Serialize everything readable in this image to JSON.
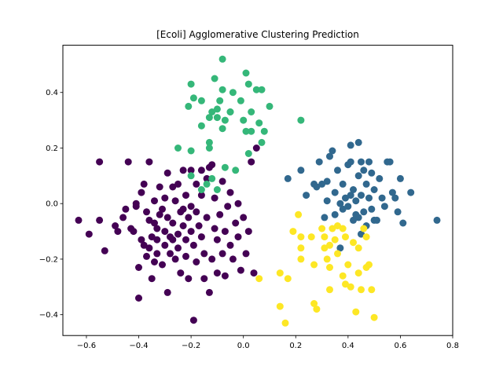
{
  "chart_data": {
    "type": "scatter",
    "title": "[Ecoli] Agglomerative Clustering Prediction",
    "xlabel": "",
    "ylabel": "",
    "xlim": [
      -0.69,
      0.8
    ],
    "ylim": [
      -0.475,
      0.57
    ],
    "xticks": [
      -0.6,
      -0.4,
      -0.2,
      0.0,
      0.2,
      0.4,
      0.6,
      0.8
    ],
    "xtick_labels": [
      "−0.6",
      "−0.4",
      "−0.2",
      "0.0",
      "0.2",
      "0.4",
      "0.6",
      "0.8"
    ],
    "yticks": [
      -0.4,
      -0.2,
      0.0,
      0.2,
      0.4
    ],
    "ytick_labels": [
      "−0.4",
      "−0.2",
      "0.0",
      "0.2",
      "0.4"
    ],
    "grid": false,
    "colors": [
      "#440154",
      "#31688e",
      "#35b779",
      "#fde725"
    ],
    "series": [
      {
        "color": "#440154",
        "points": [
          [
            -0.63,
            -0.06
          ],
          [
            -0.59,
            -0.11
          ],
          [
            -0.55,
            0.15
          ],
          [
            -0.55,
            -0.06
          ],
          [
            -0.53,
            -0.17
          ],
          [
            -0.49,
            -0.08
          ],
          [
            -0.48,
            -0.1
          ],
          [
            -0.46,
            -0.05
          ],
          [
            -0.45,
            -0.02
          ],
          [
            -0.44,
            0.15
          ],
          [
            -0.43,
            -0.09
          ],
          [
            -0.42,
            -0.1
          ],
          [
            -0.41,
            -0.01
          ],
          [
            -0.4,
            -0.23
          ],
          [
            -0.4,
            -0.34
          ],
          [
            -0.39,
            0.04
          ],
          [
            -0.39,
            -0.13
          ],
          [
            -0.38,
            0.07
          ],
          [
            -0.38,
            -0.15
          ],
          [
            -0.37,
            -0.03
          ],
          [
            -0.37,
            -0.19
          ],
          [
            -0.36,
            0.15
          ],
          [
            -0.36,
            -0.06
          ],
          [
            -0.35,
            -0.12
          ],
          [
            -0.35,
            -0.27
          ],
          [
            -0.34,
            0.01
          ],
          [
            -0.34,
            -0.07
          ],
          [
            -0.34,
            -0.21
          ],
          [
            -0.33,
            -0.13
          ],
          [
            -0.33,
            -0.18
          ],
          [
            -0.32,
            0.06
          ],
          [
            -0.32,
            -0.04
          ],
          [
            -0.31,
            -0.02
          ],
          [
            -0.31,
            -0.22
          ],
          [
            -0.3,
            0.02
          ],
          [
            -0.3,
            -0.1
          ],
          [
            -0.3,
            -0.15
          ],
          [
            -0.29,
            0.11
          ],
          [
            -0.29,
            -0.05
          ],
          [
            -0.29,
            -0.32
          ],
          [
            -0.28,
            -0.12
          ],
          [
            -0.28,
            -0.18
          ],
          [
            -0.27,
            0.06
          ],
          [
            -0.27,
            -0.07
          ],
          [
            -0.26,
            0.01
          ],
          [
            -0.26,
            -0.2
          ],
          [
            -0.25,
            0.07
          ],
          [
            -0.25,
            -0.11
          ],
          [
            -0.25,
            -0.16
          ],
          [
            -0.24,
            -0.03
          ],
          [
            -0.24,
            -0.25
          ],
          [
            -0.23,
            0.12
          ],
          [
            -0.23,
            -0.08
          ],
          [
            -0.22,
            0.03
          ],
          [
            -0.22,
            -0.13
          ],
          [
            -0.22,
            -0.19
          ],
          [
            -0.21,
            -0.05
          ],
          [
            -0.21,
            -0.27
          ],
          [
            -0.2,
            0.12
          ],
          [
            -0.2,
            -0.01
          ],
          [
            -0.2,
            -0.1
          ],
          [
            -0.19,
            -0.42
          ],
          [
            -0.19,
            -0.15
          ],
          [
            -0.18,
            0.07
          ],
          [
            -0.18,
            -0.03
          ],
          [
            -0.18,
            -0.21
          ],
          [
            -0.17,
            -0.08
          ],
          [
            -0.16,
            0.03
          ],
          [
            -0.16,
            -0.12
          ],
          [
            -0.15,
            -0.18
          ],
          [
            -0.15,
            -0.27
          ],
          [
            -0.14,
            0.09
          ],
          [
            -0.14,
            -0.05
          ],
          [
            -0.13,
            0.13
          ],
          [
            -0.13,
            -0.32
          ],
          [
            -0.12,
            -0.2
          ],
          [
            -0.11,
            -0.09
          ],
          [
            -0.11,
            0.02
          ],
          [
            -0.1,
            -0.13
          ],
          [
            -0.1,
            -0.25
          ],
          [
            -0.09,
            -0.04
          ],
          [
            -0.08,
            0.08
          ],
          [
            -0.08,
            -0.18
          ],
          [
            -0.07,
            -0.1
          ],
          [
            -0.07,
            -0.26
          ],
          [
            -0.06,
            -0.01
          ],
          [
            -0.05,
            -0.15
          ],
          [
            -0.05,
            0.04
          ],
          [
            -0.04,
            -0.2
          ],
          [
            -0.03,
            -0.07
          ],
          [
            -0.02,
            0.0
          ],
          [
            -0.02,
            -0.12
          ],
          [
            -0.01,
            -0.24
          ],
          [
            0.0,
            -0.05
          ],
          [
            0.01,
            -0.18
          ],
          [
            0.02,
            -0.1
          ],
          [
            0.03,
            0.15
          ],
          [
            0.04,
            -0.25
          ],
          [
            0.05,
            0.2
          ],
          [
            -0.41,
            0.0
          ],
          [
            -0.16,
            0.12
          ],
          [
            -0.12,
            0.14
          ],
          [
            -0.27,
            -0.13
          ],
          [
            -0.33,
            -0.09
          ],
          [
            -0.23,
            -0.02
          ],
          [
            -0.36,
            -0.16
          ]
        ]
      },
      {
        "color": "#31688e",
        "points": [
          [
            0.17,
            0.09
          ],
          [
            0.22,
            0.12
          ],
          [
            0.24,
            0.03
          ],
          [
            0.27,
            0.07
          ],
          [
            0.28,
            0.06
          ],
          [
            0.29,
            0.15
          ],
          [
            0.3,
            0.07
          ],
          [
            0.31,
            -0.05
          ],
          [
            0.32,
            0.01
          ],
          [
            0.32,
            0.08
          ],
          [
            0.33,
            0.17
          ],
          [
            0.34,
            0.19
          ],
          [
            0.35,
            0.04
          ],
          [
            0.35,
            -0.04
          ],
          [
            0.36,
            0.12
          ],
          [
            0.37,
            -0.16
          ],
          [
            0.37,
            0.0
          ],
          [
            0.38,
            0.07
          ],
          [
            0.38,
            -0.02
          ],
          [
            0.39,
            0.02
          ],
          [
            0.4,
            0.14
          ],
          [
            0.4,
            -0.01
          ],
          [
            0.41,
            0.03
          ],
          [
            0.41,
            0.15
          ],
          [
            0.42,
            0.05
          ],
          [
            0.42,
            -0.06
          ],
          [
            0.43,
            0.01
          ],
          [
            0.44,
            0.1
          ],
          [
            0.44,
            -0.05
          ],
          [
            0.45,
            0.15
          ],
          [
            0.45,
            0.03
          ],
          [
            0.46,
            0.12
          ],
          [
            0.46,
            -0.03
          ],
          [
            0.47,
            0.07
          ],
          [
            0.47,
            -0.08
          ],
          [
            0.48,
            0.15
          ],
          [
            0.48,
            0.02
          ],
          [
            0.49,
            0.11
          ],
          [
            0.49,
            -0.02
          ],
          [
            0.5,
            0.05
          ],
          [
            0.5,
            -0.06
          ],
          [
            0.51,
            -0.06
          ],
          [
            0.52,
            0.09
          ],
          [
            0.53,
            0.02
          ],
          [
            0.54,
            -0.01
          ],
          [
            0.55,
            0.15
          ],
          [
            0.56,
            0.15
          ],
          [
            0.57,
            0.04
          ],
          [
            0.58,
            0.02
          ],
          [
            0.59,
            -0.03
          ],
          [
            0.6,
            0.09
          ],
          [
            0.61,
            -0.07
          ],
          [
            0.64,
            0.04
          ],
          [
            0.74,
            -0.06
          ],
          [
            0.44,
            0.22
          ],
          [
            0.41,
            0.21
          ],
          [
            0.45,
            -0.11
          ],
          [
            0.43,
            -0.04
          ]
        ]
      },
      {
        "color": "#35b779",
        "points": [
          [
            -0.08,
            0.52
          ],
          [
            0.01,
            0.47
          ],
          [
            -0.11,
            0.45
          ],
          [
            -0.2,
            0.43
          ],
          [
            -0.08,
            0.41
          ],
          [
            0.02,
            0.43
          ],
          [
            0.05,
            0.41
          ],
          [
            -0.04,
            0.4
          ],
          [
            0.07,
            0.41
          ],
          [
            -0.19,
            0.38
          ],
          [
            -0.16,
            0.37
          ],
          [
            -0.09,
            0.37
          ],
          [
            -0.01,
            0.37
          ],
          [
            -0.21,
            0.35
          ],
          [
            0.1,
            0.35
          ],
          [
            -0.12,
            0.33
          ],
          [
            -0.05,
            0.33
          ],
          [
            0.03,
            0.33
          ],
          [
            -0.13,
            0.31
          ],
          [
            -0.1,
            0.31
          ],
          [
            -0.07,
            0.3
          ],
          [
            0.0,
            0.3
          ],
          [
            0.06,
            0.29
          ],
          [
            -0.16,
            0.28
          ],
          [
            -0.08,
            0.27
          ],
          [
            0.01,
            0.26
          ],
          [
            0.03,
            0.26
          ],
          [
            0.08,
            0.26
          ],
          [
            0.22,
            0.3
          ],
          [
            -0.13,
            0.22
          ],
          [
            -0.13,
            0.2
          ],
          [
            -0.2,
            0.19
          ],
          [
            0.02,
            0.18
          ],
          [
            -0.25,
            0.2
          ],
          [
            -0.07,
            0.13
          ],
          [
            -0.03,
            0.12
          ],
          [
            -0.12,
            0.09
          ],
          [
            -0.2,
            0.1
          ],
          [
            -0.14,
            0.07
          ],
          [
            -0.1,
            0.05
          ],
          [
            0.07,
            0.22
          ],
          [
            -0.05,
            0.33
          ],
          [
            -0.16,
            0.05
          ],
          [
            -0.1,
            0.34
          ]
        ]
      },
      {
        "color": "#fde725",
        "points": [
          [
            0.21,
            -0.04
          ],
          [
            0.19,
            -0.1
          ],
          [
            0.22,
            -0.12
          ],
          [
            0.22,
            -0.16
          ],
          [
            0.22,
            -0.2
          ],
          [
            0.26,
            -0.12
          ],
          [
            0.27,
            -0.22
          ],
          [
            0.3,
            -0.09
          ],
          [
            0.31,
            -0.12
          ],
          [
            0.31,
            -0.16
          ],
          [
            0.32,
            -0.2
          ],
          [
            0.33,
            -0.15
          ],
          [
            0.33,
            -0.23
          ],
          [
            0.34,
            -0.09
          ],
          [
            0.35,
            -0.13
          ],
          [
            0.36,
            -0.18
          ],
          [
            0.38,
            -0.09
          ],
          [
            0.38,
            -0.26
          ],
          [
            0.39,
            -0.12
          ],
          [
            0.4,
            -0.22
          ],
          [
            0.41,
            -0.3
          ],
          [
            0.42,
            -0.14
          ],
          [
            0.44,
            -0.16
          ],
          [
            0.44,
            -0.25
          ],
          [
            0.45,
            -0.31
          ],
          [
            0.46,
            -0.09
          ],
          [
            0.47,
            -0.12
          ],
          [
            0.48,
            -0.22
          ],
          [
            0.49,
            -0.31
          ],
          [
            0.5,
            -0.41
          ],
          [
            0.43,
            -0.39
          ],
          [
            0.39,
            -0.29
          ],
          [
            0.33,
            -0.31
          ],
          [
            0.27,
            -0.36
          ],
          [
            0.28,
            -0.38
          ],
          [
            0.16,
            -0.43
          ],
          [
            0.14,
            -0.37
          ],
          [
            0.14,
            -0.25
          ],
          [
            0.17,
            -0.27
          ],
          [
            0.06,
            -0.27
          ],
          [
            0.47,
            -0.23
          ],
          [
            0.36,
            -0.08
          ]
        ]
      }
    ]
  }
}
